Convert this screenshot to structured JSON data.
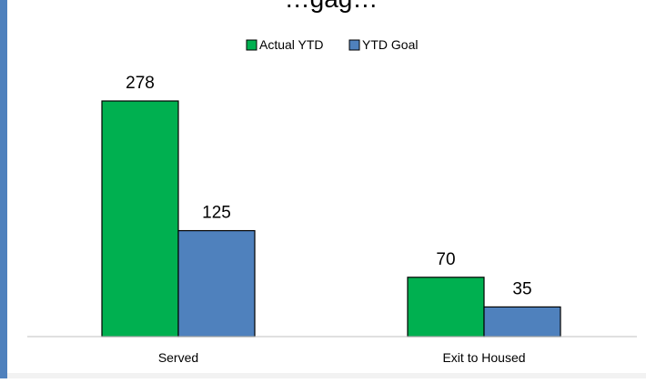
{
  "chart_data": {
    "type": "bar",
    "title": "…gag…",
    "categories": [
      "Served",
      "Exit to Housed"
    ],
    "series": [
      {
        "name": "Actual YTD",
        "values": [
          278,
          70
        ],
        "color": "#00b050"
      },
      {
        "name": "YTD Goal",
        "values": [
          125,
          35
        ],
        "color": "#4f81bd"
      }
    ],
    "ylim": [
      0,
      300
    ],
    "grid": false,
    "legend_position": "top"
  },
  "colors": {
    "left_border": "#4f81bd",
    "bottom_border": "#bfbfbf",
    "axis_line": "#c0c0c0"
  }
}
